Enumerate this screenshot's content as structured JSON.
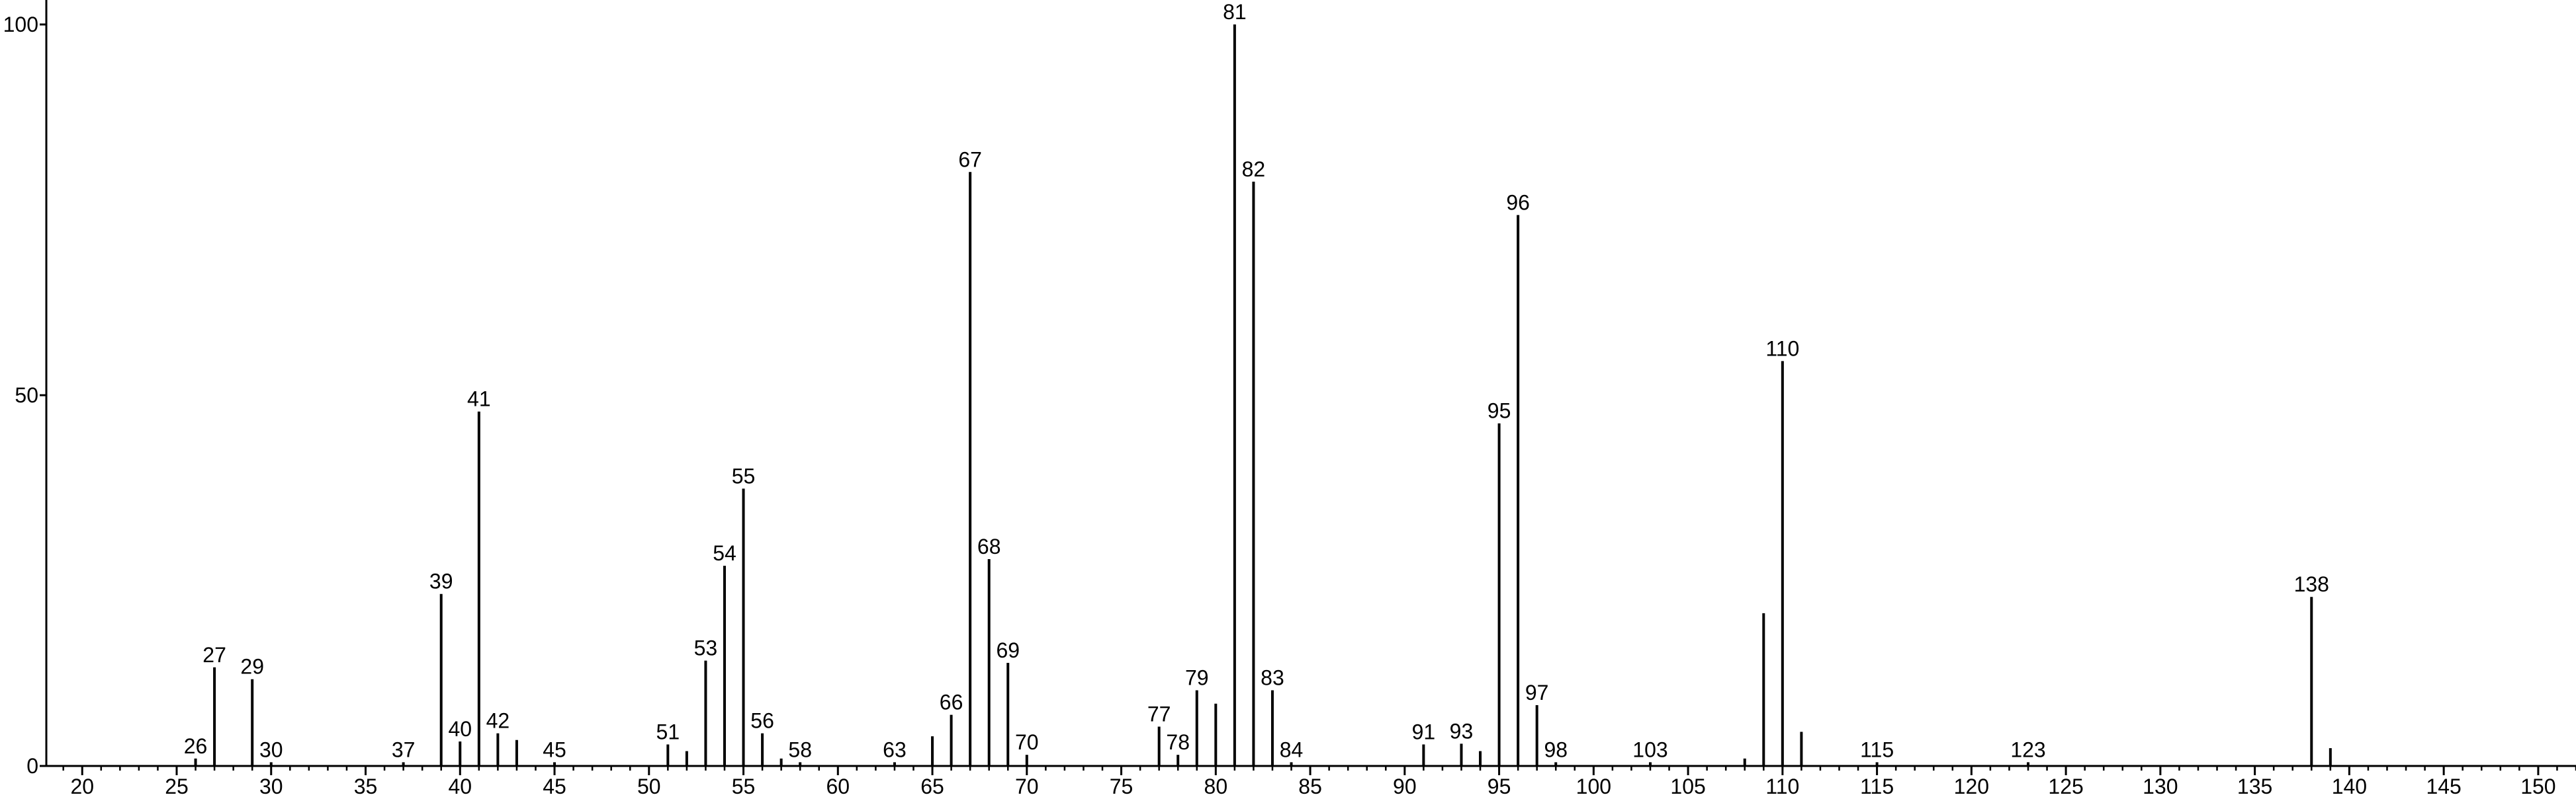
{
  "chart_data": {
    "type": "stem",
    "x": [
      26,
      27,
      29,
      30,
      37,
      39,
      40,
      41,
      42,
      43,
      45,
      51,
      52,
      53,
      54,
      55,
      56,
      57,
      58,
      63,
      65,
      66,
      67,
      68,
      69,
      70,
      77,
      78,
      79,
      80,
      81,
      82,
      83,
      84,
      91,
      93,
      94,
      95,
      96,
      97,
      98,
      103,
      108,
      109,
      110,
      111,
      115,
      123,
      138,
      139
    ],
    "values": [
      1,
      13.3,
      11.7,
      0.5,
      0.5,
      23.2,
      3.3,
      47.8,
      4.4,
      3.5,
      0.5,
      2.9,
      2,
      14.2,
      27,
      37.4,
      4.4,
      1,
      0.5,
      0.5,
      4,
      6.9,
      80.1,
      27.9,
      13.9,
      1.5,
      5.3,
      1.5,
      10.2,
      8.4,
      100,
      78.8,
      10.2,
      0.5,
      2.9,
      3,
      2,
      46.2,
      74.3,
      8.2,
      0.5,
      0.5,
      1,
      20.6,
      54.6,
      4.6,
      0.5,
      0.5,
      22.8,
      2.4
    ],
    "labeled": [
      true,
      true,
      true,
      true,
      true,
      true,
      true,
      true,
      true,
      false,
      true,
      true,
      false,
      true,
      true,
      true,
      true,
      false,
      true,
      true,
      false,
      true,
      true,
      true,
      true,
      true,
      true,
      true,
      true,
      false,
      true,
      true,
      true,
      true,
      true,
      true,
      false,
      true,
      true,
      true,
      true,
      true,
      false,
      false,
      true,
      false,
      true,
      true,
      true,
      false
    ],
    "color": "#000000",
    "xlim": [
      18.1,
      152
    ],
    "xticks": [
      20,
      25,
      30,
      35,
      40,
      45,
      50,
      55,
      60,
      65,
      70,
      75,
      80,
      85,
      90,
      95,
      100,
      105,
      110,
      115,
      120,
      125,
      130,
      135,
      140,
      145,
      150
    ],
    "minor_tick_step": 1,
    "ylim": [
      0,
      103.3
    ],
    "yticks": [
      0,
      50,
      100
    ]
  }
}
